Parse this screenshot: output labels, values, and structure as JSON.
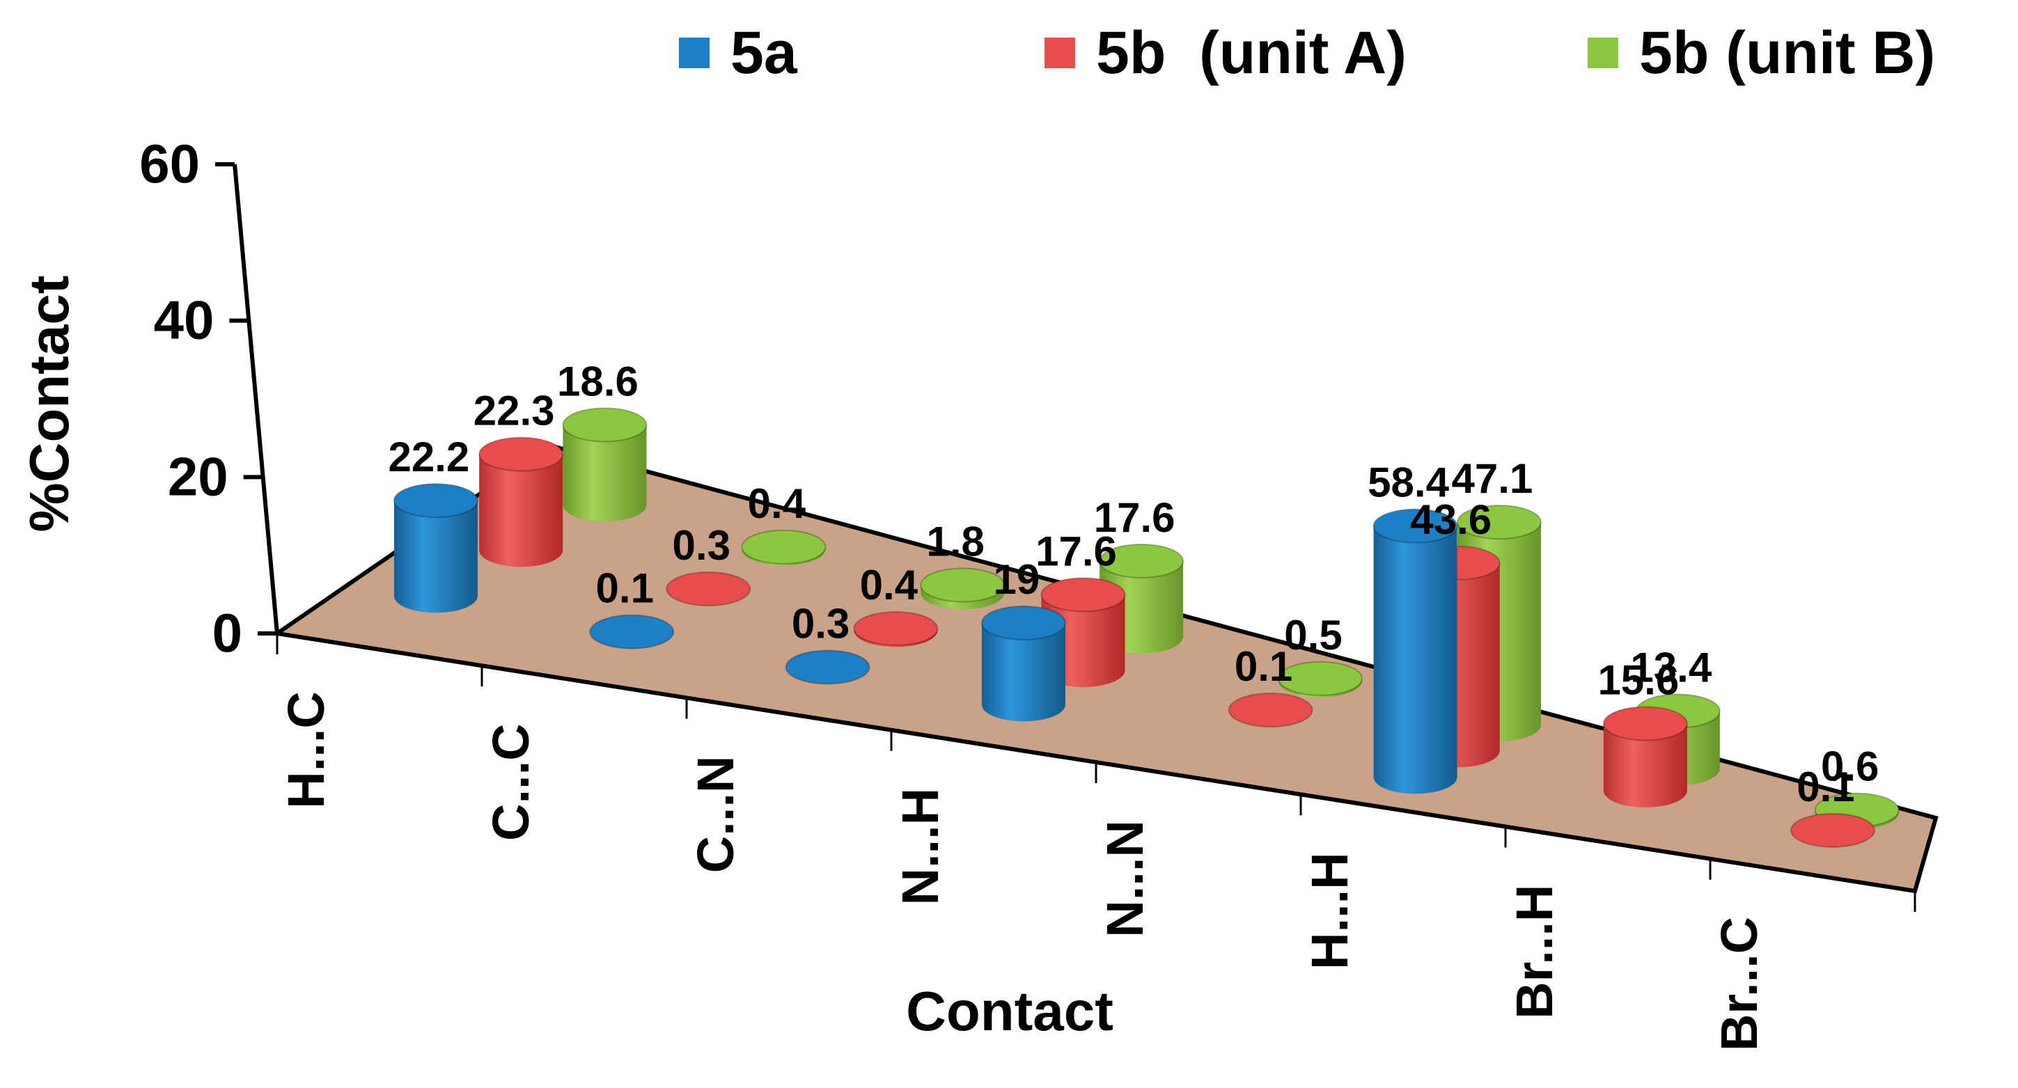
{
  "chart_data": {
    "type": "bar",
    "style": "3d-cylinder",
    "title": "",
    "xlabel": "Contact",
    "ylabel": "%Contact",
    "ylim": [
      0,
      60
    ],
    "yticks": [
      0,
      20,
      40,
      60
    ],
    "categories": [
      "H...C",
      "C...C",
      "C...N",
      "N...H",
      "N...N",
      "H...H",
      "Br...H",
      "Br...C"
    ],
    "series": [
      {
        "name": "5a",
        "color": "#1f7fc4",
        "values": [
          22.2,
          0.1,
          0.3,
          19,
          null,
          58.4,
          null,
          null
        ],
        "labels": [
          "22.2",
          "0.1",
          "0.3",
          "19",
          "",
          "58.4",
          "",
          ""
        ]
      },
      {
        "name": "5b  (unit A)",
        "color": "#e84c4c",
        "values": [
          22.3,
          0.3,
          0.4,
          17.6,
          0.1,
          43.6,
          15.6,
          0.1
        ],
        "labels": [
          "22.3",
          "0.3",
          "0.4",
          "17.6",
          "0.1",
          "43.6",
          "15.6",
          "0.1"
        ]
      },
      {
        "name": "5b (unit B)",
        "color": "#8dc63f",
        "values": [
          18.6,
          0.4,
          1.8,
          17.6,
          0.5,
          47.1,
          13.4,
          0.6
        ],
        "labels": [
          "18.6",
          "0.4",
          "1.8",
          "17.6",
          "0.5",
          "47.1",
          "13.4",
          "0.6"
        ]
      }
    ],
    "legend_position": "top",
    "floor_color": "#c8a088"
  }
}
